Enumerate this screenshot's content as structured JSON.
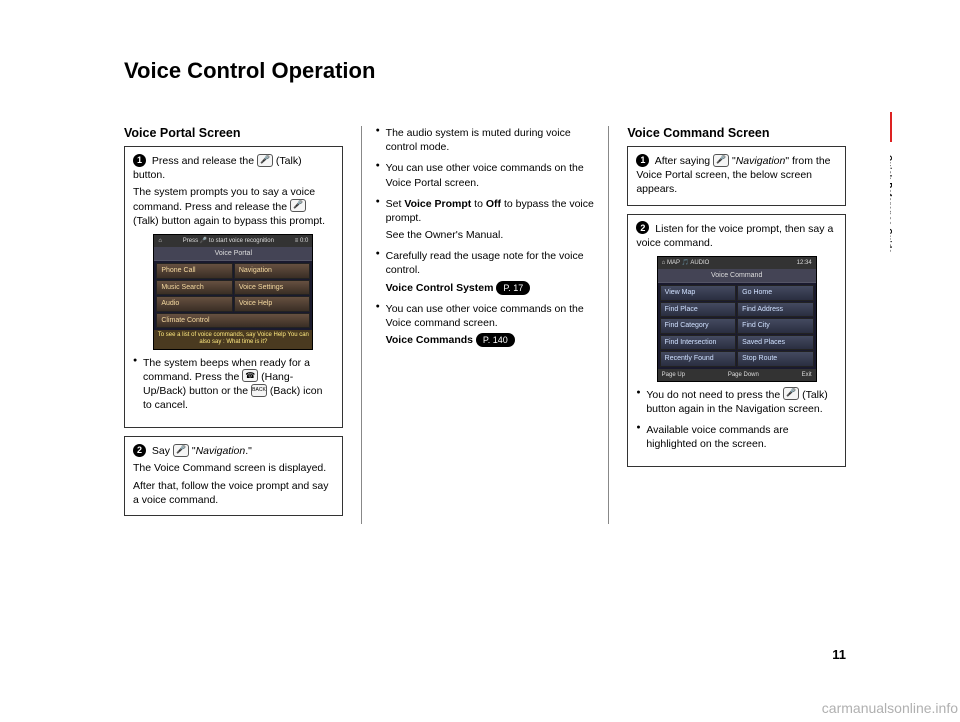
{
  "page": {
    "title": "Voice Control Operation",
    "side_label": "Quick Reference Guide",
    "page_number": "11",
    "watermark": "carmanualsonline.info"
  },
  "col1": {
    "heading": "Voice Portal Screen",
    "step1": {
      "num": "1",
      "line1a": "Press and release the ",
      "line1b": " (Talk) button.",
      "line2a": "The system prompts you to say a voice command. Press and release the ",
      "line2b": " (Talk) button again to bypass this prompt."
    },
    "screenshot1": {
      "top_left": "⌂",
      "top_mid": "Press 🎤 to start voice recognition",
      "top_right": "≡  0:0",
      "title": "Voice Portal",
      "buttons": [
        "Phone Call",
        "Navigation",
        "Music Search",
        "Voice Settings",
        "Audio",
        "Voice Help",
        "Climate Control"
      ],
      "hint": "To see a list of voice commands, say Voice Help\nYou can also say : What time is it?"
    },
    "step1_bullet_a": "The system beeps when ready for a command. Press the ",
    "step1_bullet_b": " (Hang-Up/Back) button or the ",
    "step1_bullet_c": " (Back) icon to cancel.",
    "step2": {
      "num": "2",
      "line1a": "Say ",
      "line1b": " \"",
      "line1c": "Navigation",
      "line1d": ".\"",
      "line2": "The Voice Command screen is displayed.",
      "line3": "After that, follow the voice prompt and say a voice command."
    }
  },
  "col2": {
    "bullets": [
      {
        "text": "The audio system is muted during voice control mode."
      },
      {
        "text": "You can use other voice commands on the Voice Portal screen."
      },
      {
        "pre": "Set ",
        "b1": "Voice Prompt",
        "mid": " to ",
        "b2": "Off",
        "post": " to bypass the voice prompt.",
        "sub": "See the Owner's Manual."
      },
      {
        "text": "Carefully read the usage note for the voice control.",
        "ref_label": "Voice Control System",
        "ref": "P. 17"
      },
      {
        "text": "You can use other voice commands on the Voice command screen.",
        "ref_label": "Voice Commands",
        "ref": "P. 140"
      }
    ]
  },
  "col3": {
    "heading": "Voice Command Screen",
    "step1": {
      "num": "1",
      "line1a": "After saying ",
      "line1b": " \"",
      "line1c": "Navigation",
      "line1d": "\" from the Voice Portal screen, the below screen appears."
    },
    "step2": {
      "num": "2",
      "line1": "Listen for the voice prompt, then say a voice command."
    },
    "screenshot2": {
      "top_left": "⌂  MAP 🎵 AUDIO",
      "top_right": "12:34",
      "title": "Voice Command",
      "buttons": [
        "View Map",
        "Go Home",
        "Find Place",
        "Find Address",
        "Find Category",
        "Find City",
        "Find Intersection",
        "Saved Places",
        "Recently Found",
        "Stop Route"
      ],
      "footer_left": "Page Up",
      "footer_mid": "Page Down",
      "footer_right": "Exit"
    },
    "bullets": [
      {
        "pre": "You do not need to press the ",
        "post": " (Talk) button again in the Navigation screen."
      },
      {
        "text": "Available voice commands are highlighted on the screen."
      }
    ]
  },
  "icons": {
    "talk": "🎤",
    "hangup": "☎",
    "back": "BACK"
  }
}
